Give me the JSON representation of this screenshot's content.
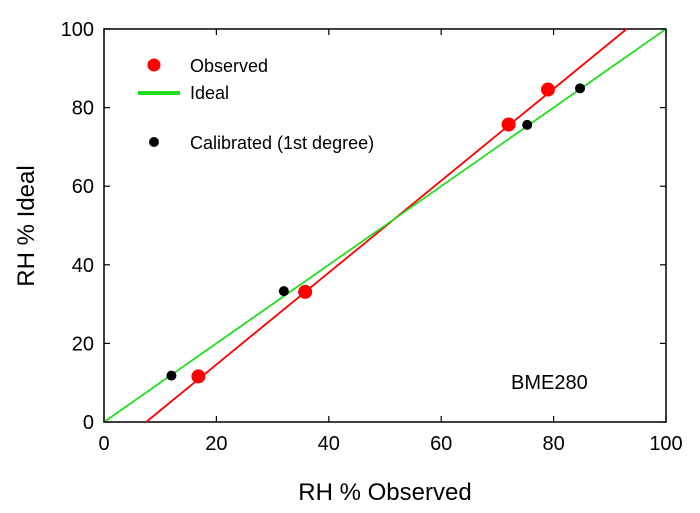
{
  "chart_data": {
    "type": "scatter",
    "xlabel": "RH % Observed",
    "ylabel": "RH % Ideal",
    "xlim": [
      0,
      100
    ],
    "ylim": [
      0,
      100
    ],
    "xticks": [
      0,
      20,
      40,
      60,
      80,
      100
    ],
    "yticks": [
      0,
      20,
      40,
      60,
      80,
      100
    ],
    "grid": false,
    "legend_position": "top-left",
    "annotation": "BME280",
    "series": [
      {
        "name": "Observed",
        "kind": "points",
        "color": "#ff0000",
        "points": [
          [
            16.8,
            11.6
          ],
          [
            35.8,
            33.1
          ],
          [
            72.0,
            75.7
          ],
          [
            79.0,
            84.6
          ]
        ]
      },
      {
        "name": "",
        "kind": "line",
        "color": "#ff0000",
        "points": [
          [
            7.5,
            0
          ],
          [
            93.0,
            100
          ]
        ]
      },
      {
        "name": "Ideal",
        "kind": "line",
        "color": "#22dd22",
        "points": [
          [
            0,
            0
          ],
          [
            100,
            100
          ]
        ]
      },
      {
        "name": "Calibrated (1st degree)",
        "kind": "points",
        "color": "#000000",
        "points": [
          [
            12.0,
            11.8
          ],
          [
            32.0,
            33.3
          ],
          [
            75.3,
            75.6
          ],
          [
            84.7,
            84.9
          ]
        ]
      }
    ]
  }
}
